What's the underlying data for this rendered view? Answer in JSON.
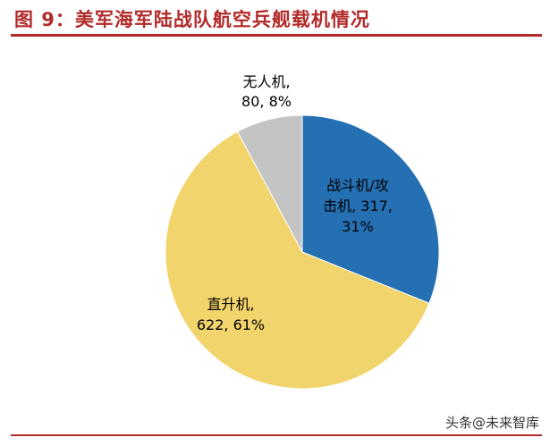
{
  "page": {
    "title": "图 9：美军海军陆战队航空兵舰载机情况",
    "watermark": "头条@未来智库"
  },
  "colors": {
    "title": "#b22a2a",
    "rule": "#b22a2a",
    "text": "#000000"
  },
  "chart_data": {
    "type": "pie",
    "start_angle_deg": 0,
    "direction": "clockwise",
    "slices": [
      {
        "label_lines": [
          "战斗机/攻",
          "击机, 317,",
          "31%"
        ],
        "value": 317,
        "percent": 31,
        "color": "#2470b3"
      },
      {
        "label_lines": [
          "直升机,",
          "622, 61%"
        ],
        "value": 622,
        "percent": 61,
        "color": "#f1d46c"
      },
      {
        "label_lines": [
          "无人机,",
          "80, 8%"
        ],
        "value": 80,
        "percent": 8,
        "color": "#c4c4c4"
      }
    ]
  }
}
